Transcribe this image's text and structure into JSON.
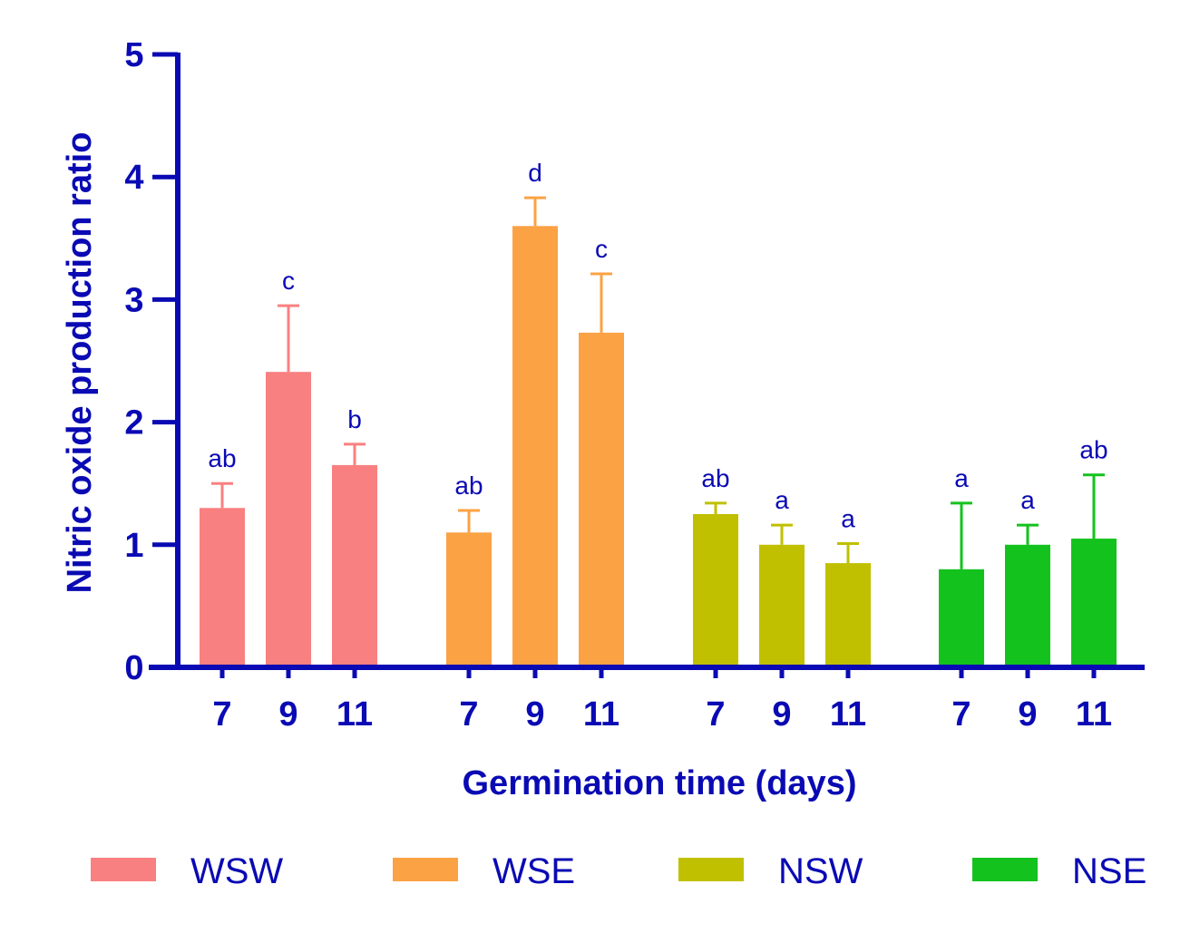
{
  "chart_data": {
    "type": "bar",
    "xlabel": "Germination time (days)",
    "ylabel": "Nitric oxide production ratio",
    "ylim": [
      0,
      5
    ],
    "yticks": [
      "0",
      "1",
      "2",
      "3",
      "4",
      "5"
    ],
    "axis_color": "#0a0ab4",
    "series": [
      {
        "name": "WSW",
        "color": "#f98080",
        "categories": [
          "7",
          "9",
          "11"
        ],
        "values": [
          1.3,
          2.41,
          1.65
        ],
        "errors": [
          0.2,
          0.54,
          0.17
        ],
        "letters": [
          "ab",
          "c",
          "b"
        ]
      },
      {
        "name": "WSE",
        "color": "#fba244",
        "categories": [
          "7",
          "9",
          "11"
        ],
        "values": [
          1.1,
          3.6,
          2.73
        ],
        "errors": [
          0.18,
          0.23,
          0.48
        ],
        "letters": [
          "ab",
          "d",
          "c"
        ]
      },
      {
        "name": "NSW",
        "color": "#c0c000",
        "categories": [
          "7",
          "9",
          "11"
        ],
        "values": [
          1.25,
          1.0,
          0.85
        ],
        "errors": [
          0.09,
          0.16,
          0.16
        ],
        "letters": [
          "ab",
          "a",
          "a"
        ]
      },
      {
        "name": "NSE",
        "color": "#14c21e",
        "categories": [
          "7",
          "9",
          "11"
        ],
        "values": [
          0.8,
          1.0,
          1.05
        ],
        "errors": [
          0.54,
          0.16,
          0.52
        ],
        "letters": [
          "a",
          "a",
          "ab"
        ]
      }
    ]
  }
}
